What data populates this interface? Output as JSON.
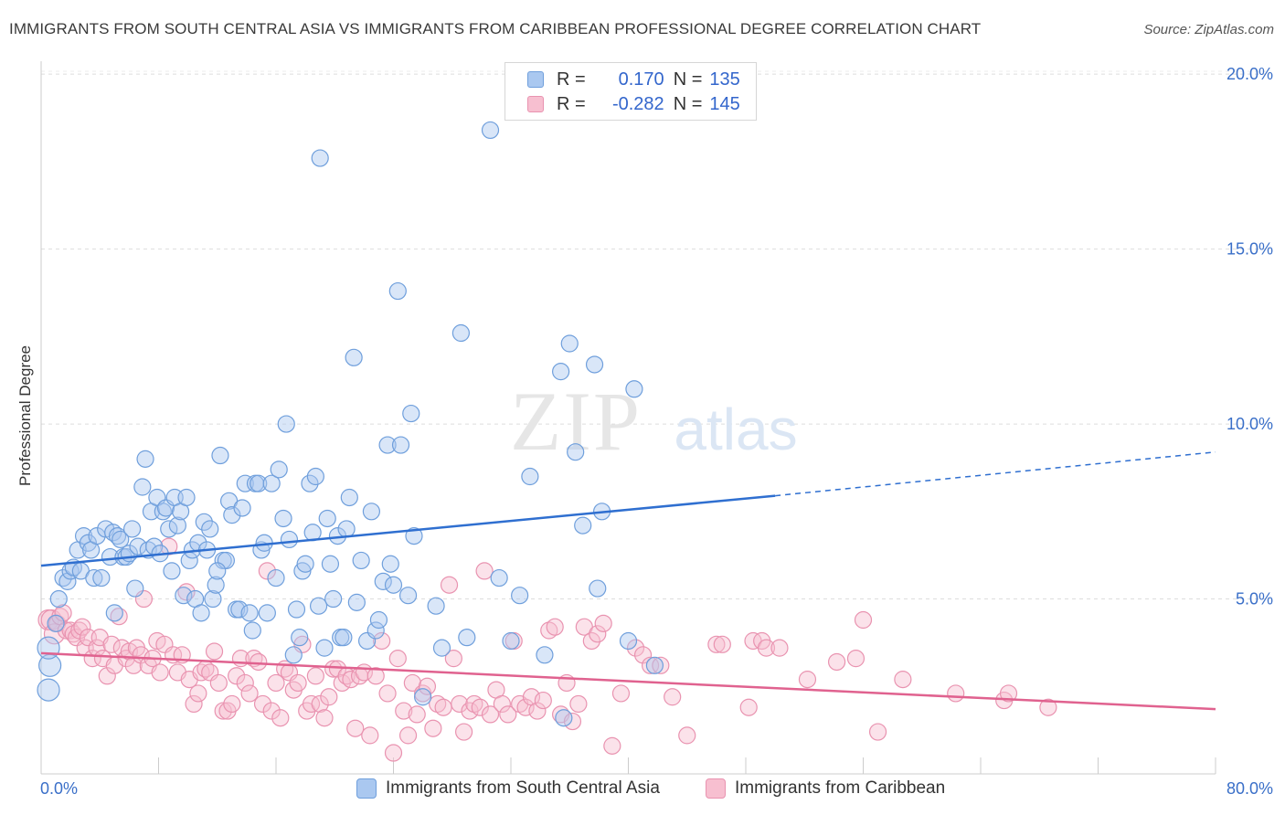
{
  "title": "IMMIGRANTS FROM SOUTH CENTRAL ASIA VS IMMIGRANTS FROM CARIBBEAN PROFESSIONAL DEGREE CORRELATION CHART",
  "source": "Source: ZipAtlas.com",
  "watermark": {
    "zip": "ZIP",
    "atlas": "atlas"
  },
  "legend": {
    "rows": [
      {
        "r_label": "R =",
        "r_value": "0.170",
        "n_label": "N =",
        "n_value": "135"
      },
      {
        "r_label": "R =",
        "r_value": "-0.282",
        "n_label": "N =",
        "n_value": "145"
      }
    ]
  },
  "colors": {
    "blue_fill": "#aac8f0",
    "blue_stroke": "#6f9fdc",
    "blue_line": "#2f6fd0",
    "pink_fill": "#f7bfd0",
    "pink_stroke": "#e993b0",
    "pink_line": "#e0628f",
    "axis_text": "#3a6fc8",
    "grid": "#dddddd"
  },
  "chart_data": {
    "type": "scatter",
    "title": "IMMIGRANTS FROM SOUTH CENTRAL ASIA VS IMMIGRANTS FROM CARIBBEAN PROFESSIONAL DEGREE CORRELATION CHART",
    "xlabel": "",
    "ylabel": "Professional Degree",
    "xlim": [
      0,
      80
    ],
    "ylim": [
      0,
      20.5
    ],
    "x_tick_labels": [
      "0.0%",
      "80.0%"
    ],
    "y_ticks": [
      5,
      10,
      15,
      20
    ],
    "y_tick_labels": [
      "5.0%",
      "10.0%",
      "15.0%",
      "20.0%"
    ],
    "grid": true,
    "legend_position": "top-center",
    "series": [
      {
        "name": "Immigrants from South Central Asia",
        "color": "#aac8f0",
        "R": 0.17,
        "N": 135,
        "trend": {
          "x0": 0,
          "y0": 5.95,
          "x1": 50,
          "y1": 7.95,
          "dashed_to_x": 80,
          "dashed_to_y": 9.2
        },
        "points": [
          [
            0.5,
            2.4
          ],
          [
            0.6,
            3.1
          ],
          [
            0.5,
            3.6
          ],
          [
            1.0,
            4.3
          ],
          [
            1.2,
            5.0
          ],
          [
            1.5,
            5.6
          ],
          [
            1.8,
            5.5
          ],
          [
            2.0,
            5.8
          ],
          [
            2.2,
            5.9
          ],
          [
            2.5,
            6.4
          ],
          [
            2.7,
            5.8
          ],
          [
            2.9,
            6.8
          ],
          [
            3.2,
            6.6
          ],
          [
            3.4,
            6.4
          ],
          [
            3.6,
            5.6
          ],
          [
            3.8,
            6.8
          ],
          [
            4.1,
            5.6
          ],
          [
            4.4,
            7.0
          ],
          [
            4.7,
            6.2
          ],
          [
            4.9,
            6.9
          ],
          [
            5.0,
            4.6
          ],
          [
            5.2,
            6.8
          ],
          [
            5.4,
            6.7
          ],
          [
            5.6,
            6.2
          ],
          [
            5.8,
            6.2
          ],
          [
            6.0,
            6.3
          ],
          [
            6.2,
            7.0
          ],
          [
            6.4,
            5.3
          ],
          [
            6.6,
            6.5
          ],
          [
            6.9,
            8.2
          ],
          [
            7.1,
            9.0
          ],
          [
            7.3,
            6.4
          ],
          [
            7.5,
            7.5
          ],
          [
            7.7,
            6.5
          ],
          [
            7.9,
            7.9
          ],
          [
            8.1,
            6.3
          ],
          [
            8.3,
            7.5
          ],
          [
            8.5,
            7.6
          ],
          [
            8.7,
            7.0
          ],
          [
            8.9,
            5.8
          ],
          [
            9.1,
            7.9
          ],
          [
            9.3,
            7.1
          ],
          [
            9.5,
            7.5
          ],
          [
            9.7,
            5.1
          ],
          [
            9.9,
            7.9
          ],
          [
            10.1,
            6.1
          ],
          [
            10.3,
            6.4
          ],
          [
            10.5,
            5.0
          ],
          [
            10.7,
            6.6
          ],
          [
            10.9,
            4.6
          ],
          [
            11.1,
            7.2
          ],
          [
            11.3,
            6.4
          ],
          [
            11.5,
            7.0
          ],
          [
            11.7,
            5.0
          ],
          [
            11.9,
            5.4
          ],
          [
            12.2,
            9.1
          ],
          [
            12.4,
            6.1
          ],
          [
            12.6,
            6.1
          ],
          [
            12.8,
            7.8
          ],
          [
            13.0,
            7.4
          ],
          [
            13.3,
            4.7
          ],
          [
            13.5,
            4.7
          ],
          [
            13.7,
            7.6
          ],
          [
            13.9,
            8.3
          ],
          [
            14.2,
            4.6
          ],
          [
            14.4,
            4.1
          ],
          [
            14.6,
            8.3
          ],
          [
            14.8,
            8.3
          ],
          [
            15.0,
            6.4
          ],
          [
            15.2,
            6.6
          ],
          [
            15.4,
            4.6
          ],
          [
            15.7,
            8.3
          ],
          [
            16.0,
            5.6
          ],
          [
            16.2,
            8.7
          ],
          [
            16.5,
            7.3
          ],
          [
            16.7,
            10.0
          ],
          [
            16.9,
            6.7
          ],
          [
            17.2,
            3.4
          ],
          [
            17.4,
            4.7
          ],
          [
            17.6,
            3.9
          ],
          [
            17.8,
            5.8
          ],
          [
            18.0,
            6.0
          ],
          [
            18.3,
            8.3
          ],
          [
            18.5,
            6.9
          ],
          [
            18.7,
            8.5
          ],
          [
            18.9,
            4.8
          ],
          [
            19.0,
            17.6
          ],
          [
            19.3,
            3.6
          ],
          [
            19.5,
            7.3
          ],
          [
            19.7,
            6.0
          ],
          [
            19.9,
            5.0
          ],
          [
            20.2,
            6.8
          ],
          [
            20.4,
            3.9
          ],
          [
            20.6,
            3.9
          ],
          [
            20.8,
            7.0
          ],
          [
            21.0,
            7.9
          ],
          [
            21.3,
            11.9
          ],
          [
            21.5,
            4.9
          ],
          [
            21.8,
            6.1
          ],
          [
            22.2,
            3.8
          ],
          [
            22.5,
            7.5
          ],
          [
            22.8,
            4.1
          ],
          [
            23.0,
            4.4
          ],
          [
            23.3,
            5.5
          ],
          [
            23.6,
            9.4
          ],
          [
            23.8,
            6.0
          ],
          [
            24.0,
            5.4
          ],
          [
            24.3,
            13.8
          ],
          [
            24.5,
            9.4
          ],
          [
            25.0,
            5.1
          ],
          [
            25.2,
            10.3
          ],
          [
            25.4,
            6.8
          ],
          [
            26.0,
            2.2
          ],
          [
            26.9,
            4.8
          ],
          [
            27.3,
            3.6
          ],
          [
            28.6,
            12.6
          ],
          [
            29.0,
            3.9
          ],
          [
            30.6,
            18.4
          ],
          [
            32.0,
            3.8
          ],
          [
            33.3,
            8.5
          ],
          [
            34.3,
            3.4
          ],
          [
            35.4,
            11.5
          ],
          [
            35.6,
            1.6
          ],
          [
            36.0,
            12.3
          ],
          [
            36.4,
            9.2
          ],
          [
            36.9,
            7.1
          ],
          [
            37.7,
            11.7
          ],
          [
            37.9,
            5.3
          ],
          [
            38.2,
            7.5
          ],
          [
            40.0,
            3.8
          ],
          [
            40.4,
            11.0
          ],
          [
            41.8,
            3.1
          ],
          [
            32.6,
            5.1
          ],
          [
            31.2,
            5.6
          ],
          [
            12.0,
            5.8
          ]
        ]
      },
      {
        "name": "Immigrants from Caribbean",
        "color": "#f7bfd0",
        "R": -0.282,
        "N": 145,
        "trend": {
          "x0": 0,
          "y0": 3.45,
          "x1": 80,
          "y1": 1.85
        },
        "points": [
          [
            0.5,
            4.4
          ],
          [
            0.7,
            4.4
          ],
          [
            0.9,
            4.0
          ],
          [
            1.1,
            4.3
          ],
          [
            1.3,
            4.5
          ],
          [
            1.5,
            4.6
          ],
          [
            1.7,
            4.1
          ],
          [
            2.0,
            4.1
          ],
          [
            2.2,
            4.0
          ],
          [
            2.4,
            3.9
          ],
          [
            2.6,
            4.1
          ],
          [
            2.8,
            4.2
          ],
          [
            3.0,
            3.6
          ],
          [
            3.2,
            3.9
          ],
          [
            3.5,
            3.3
          ],
          [
            3.8,
            3.6
          ],
          [
            4.0,
            3.9
          ],
          [
            4.2,
            3.3
          ],
          [
            4.5,
            2.8
          ],
          [
            4.8,
            3.7
          ],
          [
            5.0,
            3.1
          ],
          [
            5.3,
            4.5
          ],
          [
            5.5,
            3.6
          ],
          [
            5.8,
            3.3
          ],
          [
            6.0,
            3.5
          ],
          [
            6.3,
            3.1
          ],
          [
            6.5,
            3.6
          ],
          [
            6.8,
            3.4
          ],
          [
            7.0,
            5.0
          ],
          [
            7.3,
            3.1
          ],
          [
            7.6,
            3.3
          ],
          [
            7.9,
            3.8
          ],
          [
            8.1,
            2.9
          ],
          [
            8.4,
            3.7
          ],
          [
            8.7,
            6.5
          ],
          [
            9.0,
            3.4
          ],
          [
            9.3,
            2.9
          ],
          [
            9.6,
            3.4
          ],
          [
            9.9,
            5.2
          ],
          [
            10.1,
            2.7
          ],
          [
            10.4,
            2.0
          ],
          [
            10.7,
            2.3
          ],
          [
            10.9,
            2.9
          ],
          [
            11.2,
            3.0
          ],
          [
            11.5,
            2.9
          ],
          [
            11.8,
            3.5
          ],
          [
            12.1,
            2.6
          ],
          [
            12.4,
            1.8
          ],
          [
            12.7,
            1.8
          ],
          [
            13.0,
            2.0
          ],
          [
            13.3,
            2.8
          ],
          [
            13.6,
            3.3
          ],
          [
            13.9,
            2.6
          ],
          [
            14.2,
            2.3
          ],
          [
            14.5,
            3.3
          ],
          [
            14.8,
            3.2
          ],
          [
            15.1,
            2.0
          ],
          [
            15.4,
            5.8
          ],
          [
            15.7,
            1.8
          ],
          [
            16.0,
            2.6
          ],
          [
            16.3,
            1.6
          ],
          [
            16.6,
            3.0
          ],
          [
            16.9,
            2.9
          ],
          [
            17.2,
            2.4
          ],
          [
            17.5,
            2.6
          ],
          [
            17.8,
            3.7
          ],
          [
            18.1,
            1.8
          ],
          [
            18.4,
            2.0
          ],
          [
            18.7,
            2.8
          ],
          [
            19.0,
            2.0
          ],
          [
            19.3,
            1.6
          ],
          [
            19.6,
            2.2
          ],
          [
            19.9,
            3.0
          ],
          [
            20.2,
            3.0
          ],
          [
            20.5,
            2.6
          ],
          [
            20.8,
            2.8
          ],
          [
            21.1,
            2.7
          ],
          [
            21.4,
            1.3
          ],
          [
            21.7,
            2.8
          ],
          [
            22.0,
            2.9
          ],
          [
            22.4,
            1.1
          ],
          [
            22.8,
            2.8
          ],
          [
            23.2,
            3.8
          ],
          [
            23.6,
            2.3
          ],
          [
            24.0,
            0.6
          ],
          [
            24.3,
            3.3
          ],
          [
            24.7,
            1.8
          ],
          [
            25.0,
            1.1
          ],
          [
            25.3,
            2.6
          ],
          [
            25.6,
            1.7
          ],
          [
            26.0,
            2.3
          ],
          [
            26.3,
            2.5
          ],
          [
            26.7,
            1.3
          ],
          [
            27.0,
            2.0
          ],
          [
            27.4,
            1.9
          ],
          [
            27.8,
            5.4
          ],
          [
            28.1,
            3.3
          ],
          [
            28.5,
            2.0
          ],
          [
            28.8,
            1.2
          ],
          [
            29.2,
            1.8
          ],
          [
            29.5,
            2.0
          ],
          [
            29.9,
            1.9
          ],
          [
            30.2,
            5.8
          ],
          [
            30.6,
            1.7
          ],
          [
            31.0,
            2.4
          ],
          [
            31.4,
            2.0
          ],
          [
            31.8,
            1.7
          ],
          [
            32.2,
            3.8
          ],
          [
            32.6,
            2.0
          ],
          [
            33.0,
            1.9
          ],
          [
            33.4,
            2.2
          ],
          [
            33.8,
            1.8
          ],
          [
            34.2,
            2.1
          ],
          [
            34.6,
            4.1
          ],
          [
            35.0,
            4.2
          ],
          [
            35.4,
            1.7
          ],
          [
            35.8,
            2.6
          ],
          [
            36.2,
            1.5
          ],
          [
            36.6,
            2.0
          ],
          [
            37.0,
            4.2
          ],
          [
            37.5,
            3.8
          ],
          [
            37.9,
            4.0
          ],
          [
            38.3,
            4.3
          ],
          [
            38.9,
            0.8
          ],
          [
            39.5,
            2.3
          ],
          [
            40.5,
            3.6
          ],
          [
            41.0,
            3.4
          ],
          [
            41.5,
            3.1
          ],
          [
            42.2,
            3.1
          ],
          [
            43.0,
            2.2
          ],
          [
            44.0,
            1.1
          ],
          [
            46.0,
            3.7
          ],
          [
            46.4,
            3.7
          ],
          [
            48.2,
            1.9
          ],
          [
            48.5,
            3.8
          ],
          [
            49.1,
            3.8
          ],
          [
            49.4,
            3.6
          ],
          [
            50.3,
            3.6
          ],
          [
            52.2,
            2.7
          ],
          [
            54.2,
            3.2
          ],
          [
            55.5,
            3.3
          ],
          [
            56.0,
            4.4
          ],
          [
            57.0,
            1.2
          ],
          [
            58.7,
            2.7
          ],
          [
            62.3,
            2.3
          ],
          [
            65.6,
            2.1
          ],
          [
            65.9,
            2.3
          ],
          [
            68.6,
            1.9
          ]
        ]
      }
    ]
  },
  "bottom_legend": [
    {
      "label": "Immigrants from South Central Asia"
    },
    {
      "label": "Immigrants from Caribbean"
    }
  ]
}
